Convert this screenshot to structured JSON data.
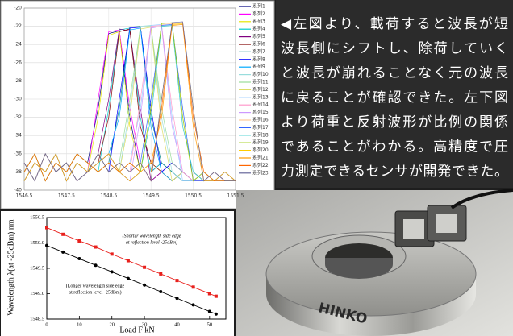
{
  "chart_data": [
    {
      "type": "line",
      "legend": "right",
      "grid": true,
      "x": [
        1546.5,
        1546.75,
        1547,
        1547.25,
        1547.5,
        1547.75,
        1548,
        1548.25,
        1548.5,
        1548.75,
        1549,
        1549.25,
        1549.5,
        1549.75,
        1550,
        1550.25,
        1550.5,
        1550.75,
        1551,
        1551.25,
        1551.5
      ],
      "xlim": [
        1546.5,
        1551.5
      ],
      "xticks": [
        1546.5,
        1547.5,
        1548.5,
        1549.5,
        1550.5,
        1551.5
      ],
      "ylim": [
        -40,
        -20
      ],
      "yticks": [
        -20,
        -22,
        -24,
        -26,
        -28,
        -30,
        -32,
        -34,
        -36,
        -38,
        -40
      ],
      "series": [
        {
          "name": "系列1",
          "color": "#000080",
          "values": [
            -38,
            -36,
            -39,
            -37,
            -38,
            -36,
            -37,
            -31,
            -22.8,
            -22.5,
            -32,
            -38,
            -38,
            -37,
            -38,
            -39,
            -39,
            -38,
            -39,
            -39,
            -39
          ]
        },
        {
          "name": "系列2",
          "color": "#ff00ff",
          "values": [
            -37,
            -39,
            -36,
            -38,
            -37,
            -39,
            -38,
            -30,
            -22.6,
            -22.4,
            -31,
            -37,
            -39,
            -38,
            -37,
            -38,
            -39,
            -39,
            -38,
            -39,
            -39
          ]
        },
        {
          "name": "系列3",
          "color": "#e6e600",
          "values": [
            -39,
            -37,
            -38,
            -36,
            -39,
            -37,
            -38,
            -32,
            -23,
            -22.6,
            -33,
            -38,
            -37,
            -38,
            -39,
            -38,
            -38,
            -39,
            -39,
            -38,
            -39
          ]
        },
        {
          "name": "系列4",
          "color": "#00cccc",
          "values": [
            -38,
            -36,
            -39,
            -37,
            -38,
            -36,
            -37,
            -38,
            -31,
            -22.4,
            -22.2,
            -32,
            -38,
            -37,
            -38,
            -39,
            -39,
            -38,
            -39,
            -39,
            -39
          ]
        },
        {
          "name": "系列5",
          "color": "#800080",
          "values": [
            -37,
            -39,
            -36,
            -38,
            -37,
            -39,
            -38,
            -36,
            -30,
            -22.3,
            -22.5,
            -31,
            -39,
            -38,
            -37,
            -38,
            -39,
            -39,
            -38,
            -39,
            -39
          ]
        },
        {
          "name": "系列6",
          "color": "#800000",
          "values": [
            -39,
            -37,
            -38,
            -36,
            -39,
            -37,
            -38,
            -37,
            -32,
            -22.6,
            -22.3,
            -33,
            -37,
            -38,
            -39,
            -38,
            -38,
            -39,
            -39,
            -38,
            -39
          ]
        },
        {
          "name": "系列7",
          "color": "#008080",
          "values": [
            -38,
            -36,
            -39,
            -37,
            -38,
            -36,
            -37,
            -38,
            -37,
            -31,
            -22.1,
            -22,
            -32,
            -37,
            -38,
            -39,
            -39,
            -38,
            -39,
            -39,
            -39
          ]
        },
        {
          "name": "系列8",
          "color": "#0000ff",
          "values": [
            -37,
            -39,
            -36,
            -38,
            -37,
            -39,
            -38,
            -36,
            -38,
            -30,
            -22.2,
            -22.1,
            -31,
            -38,
            -37,
            -38,
            -39,
            -39,
            -38,
            -39,
            -39
          ]
        },
        {
          "name": "系列9",
          "color": "#00aaff",
          "values": [
            -39,
            -37,
            -38,
            -36,
            -39,
            -37,
            -38,
            -37,
            -36,
            -32,
            -22.4,
            -22.2,
            -33,
            -38,
            -39,
            -38,
            -38,
            -39,
            -39,
            -38,
            -39
          ]
        },
        {
          "name": "系列10",
          "color": "#99dddd",
          "values": [
            -38,
            -36,
            -39,
            -37,
            -38,
            -36,
            -37,
            -38,
            -37,
            -38,
            -31,
            -22,
            -21.9,
            -32,
            -38,
            -39,
            -39,
            -38,
            -39,
            -39,
            -39
          ]
        },
        {
          "name": "系列11",
          "color": "#99dd99",
          "values": [
            -37,
            -39,
            -36,
            -38,
            -37,
            -39,
            -38,
            -36,
            -38,
            -37,
            -30,
            -22.1,
            -22,
            -31,
            -37,
            -38,
            -39,
            -39,
            -38,
            -39,
            -39
          ]
        },
        {
          "name": "系列12",
          "color": "#dddd66",
          "values": [
            -39,
            -37,
            -38,
            -36,
            -39,
            -37,
            -38,
            -37,
            -36,
            -38,
            -32,
            -22.3,
            -22.1,
            -33,
            -39,
            -38,
            -38,
            -39,
            -39,
            -38,
            -39
          ]
        },
        {
          "name": "系列13",
          "color": "#99ccff",
          "values": [
            -38,
            -36,
            -39,
            -37,
            -38,
            -36,
            -37,
            -38,
            -37,
            -38,
            -37,
            -31,
            -21.9,
            -21.8,
            -32,
            -39,
            -39,
            -38,
            -39,
            -39,
            -39
          ]
        },
        {
          "name": "系列14",
          "color": "#ff99cc",
          "values": [
            -37,
            -39,
            -36,
            -38,
            -37,
            -39,
            -38,
            -36,
            -38,
            -37,
            -38,
            -30,
            -22,
            -21.9,
            -31,
            -38,
            -39,
            -39,
            -38,
            -39,
            -39
          ]
        },
        {
          "name": "系列15",
          "color": "#cc99ff",
          "values": [
            -39,
            -37,
            -38,
            -36,
            -39,
            -37,
            -38,
            -37,
            -36,
            -38,
            -39,
            -32,
            -22.2,
            -22,
            -33,
            -38,
            -38,
            -39,
            -39,
            -38,
            -39
          ]
        },
        {
          "name": "系列16",
          "color": "#ffcc99",
          "values": [
            -38,
            -36,
            -39,
            -37,
            -38,
            -36,
            -37,
            -38,
            -37,
            -38,
            -37,
            -38,
            -31,
            -21.8,
            -21.7,
            -32,
            -39,
            -38,
            -39,
            -39,
            -39
          ]
        },
        {
          "name": "系列17",
          "color": "#3366ff",
          "values": [
            -37,
            -39,
            -36,
            -38,
            -37,
            -39,
            -38,
            -36,
            -38,
            -37,
            -38,
            -37,
            -30,
            -21.9,
            -21.8,
            -31,
            -39,
            -39,
            -38,
            -39,
            -39
          ]
        },
        {
          "name": "系列18",
          "color": "#33cccc",
          "values": [
            -39,
            -37,
            -38,
            -36,
            -39,
            -37,
            -38,
            -37,
            -36,
            -38,
            -39,
            -38,
            -32,
            -22,
            -21.9,
            -33,
            -38,
            -39,
            -39,
            -38,
            -39
          ]
        },
        {
          "name": "系列19",
          "color": "#99cc00",
          "values": [
            -38,
            -36,
            -39,
            -37,
            -38,
            -36,
            -37,
            -38,
            -37,
            -38,
            -37,
            -38,
            -31,
            -21.7,
            -21.6,
            -32,
            -39,
            -38,
            -39,
            -39,
            -39
          ]
        },
        {
          "name": "系列20",
          "color": "#ffcc00",
          "values": [
            -37,
            -39,
            -36,
            -38,
            -37,
            -39,
            -38,
            -36,
            -38,
            -37,
            -38,
            -37,
            -39,
            -30,
            -21.8,
            -21.7,
            -31,
            -39,
            -38,
            -39,
            -39
          ]
        },
        {
          "name": "系列21",
          "color": "#ff9900",
          "values": [
            -39,
            -37,
            -38,
            -36,
            -39,
            -37,
            -38,
            -37,
            -36,
            -38,
            -39,
            -38,
            -37,
            -32,
            -21.9,
            -21.8,
            -33,
            -39,
            -39,
            -38,
            -39
          ]
        },
        {
          "name": "系列22",
          "color": "#ff6600",
          "values": [
            -38,
            -36,
            -39,
            -37,
            -38,
            -36,
            -37,
            -38,
            -37,
            -38,
            -37,
            -38,
            -38,
            -31,
            -21.7,
            -21.6,
            -32,
            -38,
            -39,
            -39,
            -39
          ]
        },
        {
          "name": "系列23",
          "color": "#666699",
          "values": [
            -37,
            -39,
            -36,
            -38,
            -37,
            -39,
            -38,
            -36,
            -38,
            -37,
            -38,
            -37,
            -39,
            -30,
            -21.6,
            -21.5,
            -31,
            -39,
            -38,
            -39,
            -39
          ]
        }
      ]
    },
    {
      "type": "line",
      "grid": false,
      "x_label": "Load  F  kN",
      "y_label": "Wavelength λ(at -25dBm) nm",
      "annotations": [
        "(Shorter wavelength side edge",
        "at reflection level -25dBm)",
        "(Longer wavelength side edge",
        "at reflection level -25dBm)"
      ],
      "x": [
        0,
        5,
        10,
        15,
        20,
        25,
        30,
        35,
        40,
        45,
        50,
        52
      ],
      "xlim": [
        0,
        55
      ],
      "xticks": [
        0,
        10,
        20,
        30,
        40,
        50
      ],
      "ylim": [
        1548.5,
        1550.5
      ],
      "yticks": [
        1548.5,
        {
          "value": 1549,
          "label": "1549.0"
        },
        1549.5,
        {
          "value": 1550,
          "label": "1550.0"
        },
        1550.5
      ],
      "series": [
        {
          "name": "Shorter wavelength side edge",
          "color": "#e8201c",
          "marker": "square",
          "values": [
            1550.3,
            1550.17,
            1550.04,
            1549.92,
            1549.78,
            1549.65,
            1549.52,
            1549.39,
            1549.26,
            1549.13,
            1549.0,
            1548.95
          ]
        },
        {
          "name": "Longer wavelength side edge",
          "color": "#000000",
          "marker": "circle",
          "values": [
            1549.95,
            1549.82,
            1549.69,
            1549.56,
            1549.43,
            1549.3,
            1549.17,
            1549.04,
            1548.91,
            1548.78,
            1548.65,
            1548.6
          ]
        }
      ]
    }
  ],
  "description": {
    "lines": [
      "◀左図より、載荷すると波長が短",
      "波長側にシフトし、除荷していく",
      "と波長が崩れることなく元の波長",
      "に戻ることが確認できた。左下図",
      "より荷重と反射波形が比例の関係",
      "であることがわかる。高精度で圧",
      "力測定できるセンサが開発できた。"
    ]
  },
  "photo": {
    "label": "HINKO"
  }
}
